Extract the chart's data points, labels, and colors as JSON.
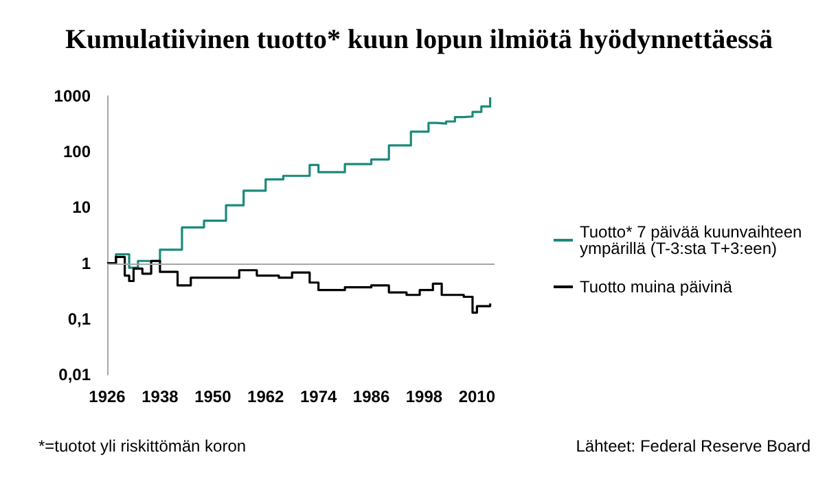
{
  "chart_data": {
    "type": "step",
    "title": "Kumulatiivinen tuotto* kuun lopun ilmiötä hyödynnettäessä",
    "xlim": [
      1926,
      2014
    ],
    "xticks": [
      1926,
      1938,
      1950,
      1962,
      1974,
      1986,
      1998,
      2010
    ],
    "ylim": [
      0.01,
      1000
    ],
    "yticks": [
      {
        "value": 0.01,
        "label": "0,01"
      },
      {
        "value": 0.1,
        "label": "0,1"
      },
      1,
      10,
      100,
      1000
    ],
    "log": "y",
    "grid": false,
    "legend": "right",
    "series": [
      {
        "name": "Tuotto* 7 päivää kuunvaihteen ympärillä (T-3:sta T+3:een)",
        "color": "#1a8a7a",
        "x": [
          1926,
          1928,
          1931,
          1933,
          1938,
          1943,
          1948,
          1953,
          1957,
          1962,
          1966,
          1970,
          1972,
          1974,
          1980,
          1986,
          1990,
          1995,
          1999,
          2001,
          2003,
          2005,
          2007,
          2009,
          2011,
          2013
        ],
        "values": [
          1,
          1.45,
          0.83,
          1.1,
          1.75,
          4.4,
          5.8,
          11,
          20,
          32,
          37,
          37,
          58,
          43,
          60,
          73,
          130,
          230,
          330,
          320,
          350,
          420,
          430,
          520,
          650,
          950
        ]
      },
      {
        "name": "Tuotto muina päivinä",
        "color": "#000000",
        "x": [
          1926,
          1928,
          1930,
          1931,
          1932,
          1934,
          1936,
          1938,
          1942,
          1945,
          1950,
          1956,
          1960,
          1965,
          1968,
          1972,
          1974,
          1980,
          1986,
          1990,
          1994,
          1997,
          2000,
          2002,
          2007,
          2009,
          2010,
          2013
        ],
        "values": [
          1,
          1.3,
          0.6,
          0.48,
          0.8,
          0.65,
          1.1,
          0.7,
          0.4,
          0.55,
          0.55,
          0.75,
          0.6,
          0.55,
          0.68,
          0.45,
          0.33,
          0.37,
          0.4,
          0.3,
          0.27,
          0.33,
          0.43,
          0.27,
          0.25,
          0.13,
          0.17,
          0.19
        ]
      }
    ],
    "ref_lines": [
      {
        "axis": "y",
        "value": 1,
        "color": "#a6a6a6"
      }
    ],
    "annotations": [
      "*=tuotot yli riskittömän koron",
      "Lähteet: Federal Reserve Board"
    ]
  }
}
